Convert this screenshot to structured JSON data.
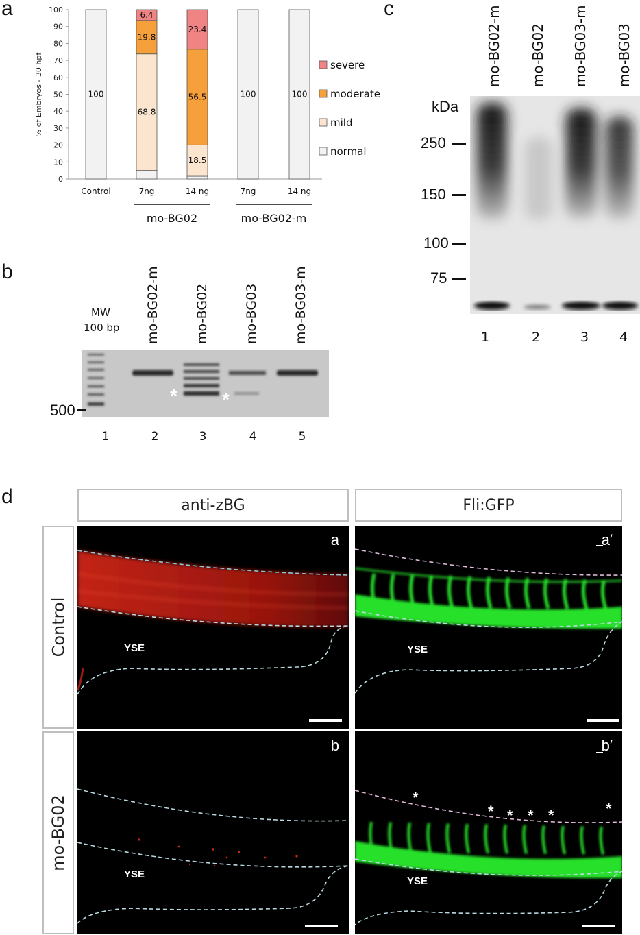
{
  "panel_a": {
    "letter": "a",
    "chart_data": {
      "type": "bar",
      "stacked": true,
      "ylabel": "% of Embryos - 30 hpf",
      "ylim": [
        0,
        100
      ],
      "yticks": [
        "0",
        "10",
        "20",
        "30",
        "40",
        "50",
        "60",
        "70",
        "80",
        "90",
        "100"
      ],
      "categories": [
        "Control",
        "7ng",
        "14 ng",
        "7ng",
        "14 ng"
      ],
      "groups": [
        {
          "label": "mo-BG02",
          "categories": [
            1,
            2
          ]
        },
        {
          "label": "mo-BG02-m",
          "categories": [
            3,
            4
          ]
        }
      ],
      "series": [
        {
          "name": "normal",
          "color": "#f2f2f2",
          "values": [
            100,
            5,
            1.6,
            100,
            100
          ],
          "labels": [
            "100",
            "",
            "",
            "100",
            "100"
          ]
        },
        {
          "name": "mild",
          "color": "#fbe5cf",
          "values": [
            0,
            68.8,
            18.5,
            0,
            0
          ],
          "labels": [
            "",
            "68.8",
            "18.5",
            "",
            ""
          ]
        },
        {
          "name": "moderate",
          "color": "#f5a03a",
          "values": [
            0,
            19.8,
            56.5,
            0,
            0
          ],
          "labels": [
            "",
            "19.8",
            "56.5",
            "",
            ""
          ]
        },
        {
          "name": "severe",
          "color": "#f08484",
          "values": [
            0,
            6.4,
            23.4,
            0,
            0
          ],
          "labels": [
            "",
            "6.4",
            "23.4",
            "",
            ""
          ]
        }
      ],
      "legend_position": "right",
      "legend_order": [
        "severe",
        "moderate",
        "mild",
        "normal"
      ],
      "grid": false
    }
  },
  "panel_b": {
    "letter": "b",
    "mw_label": "MW",
    "mw_size": "100 bp",
    "lanes": [
      "mo-BG02-m",
      "mo-BG02",
      "mo-BG03",
      "mo-BG03-m"
    ],
    "lane_numbers": [
      "1",
      "2",
      "3",
      "4",
      "5"
    ],
    "marker": "500",
    "asterisk": "*"
  },
  "panel_c": {
    "letter": "c",
    "unit": "kDa",
    "markers": [
      "250",
      "150",
      "100",
      "75"
    ],
    "lanes": [
      "mo-BG02-m",
      "mo-BG02",
      "mo-BG03-m",
      "mo-BG03"
    ],
    "lane_numbers": [
      "1",
      "2",
      "3",
      "4"
    ]
  },
  "panel_d": {
    "letter": "d",
    "columns": [
      "anti-zBG",
      "Fli:GFP"
    ],
    "rows": [
      "Control",
      "mo-BG02"
    ],
    "sublabels": [
      "a",
      "a′",
      "b",
      "b′"
    ],
    "region_label": "YSE",
    "asterisk": "*",
    "colors": {
      "red": "#d8281a",
      "green": "#27e02a"
    }
  }
}
